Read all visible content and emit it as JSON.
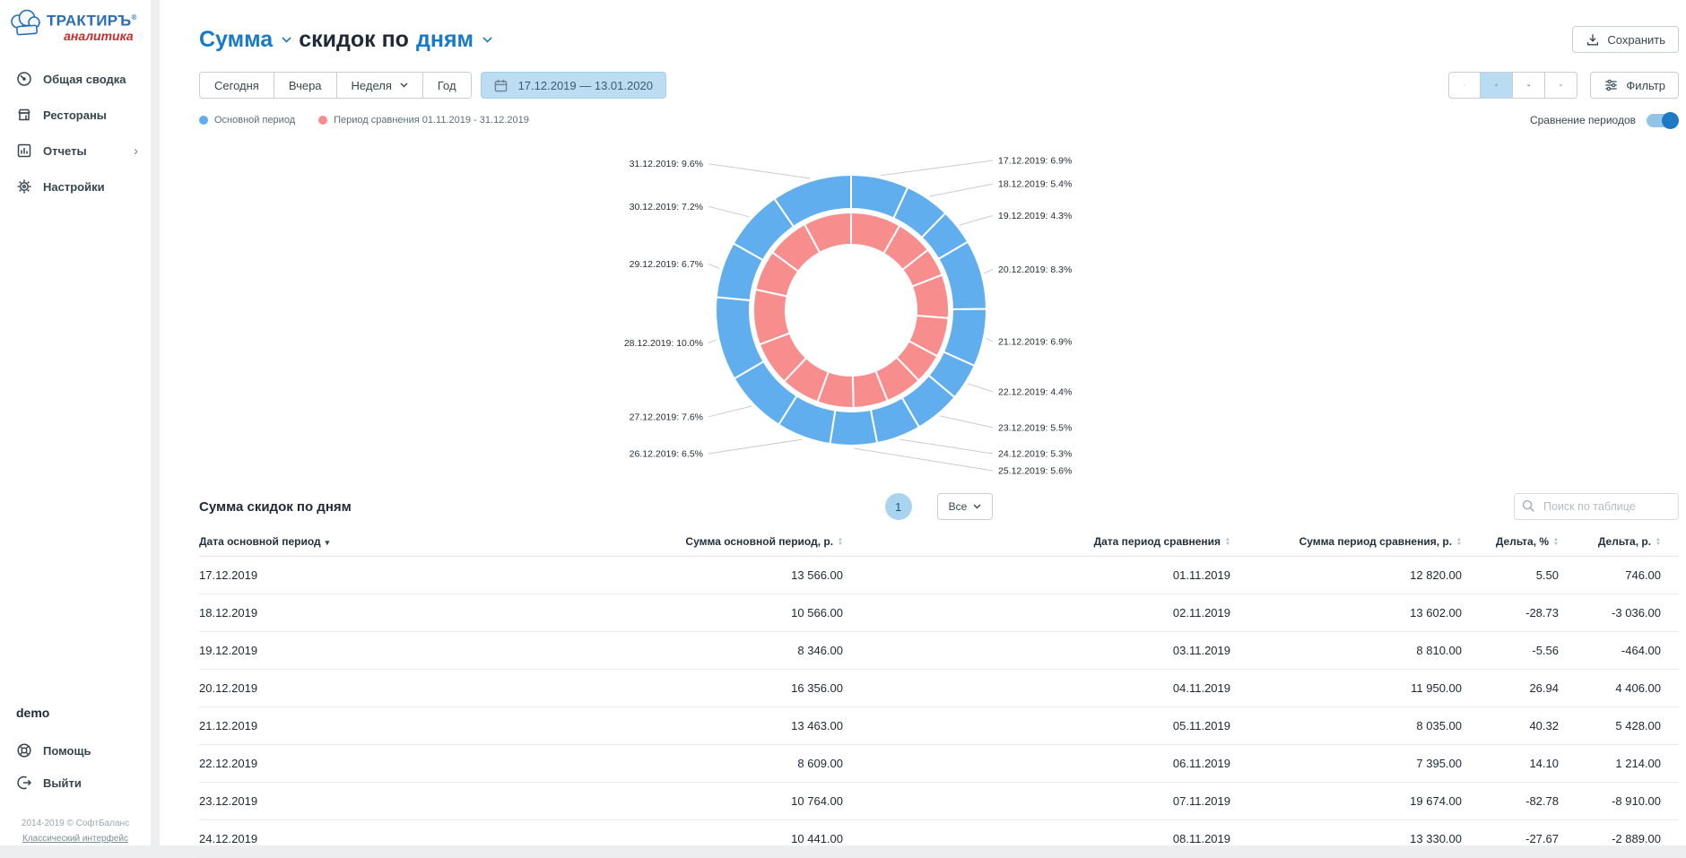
{
  "brand": {
    "name": "ТРАКТИРЪ",
    "reg": "®",
    "sub": "аналитика"
  },
  "sidebar": {
    "items": [
      {
        "label": "Общая сводка",
        "icon": "gauge-icon"
      },
      {
        "label": "Рестораны",
        "icon": "restaurant-icon"
      },
      {
        "label": "Отчеты",
        "icon": "reports-icon",
        "chevron": true
      },
      {
        "label": "Настройки",
        "icon": "gear-icon"
      }
    ],
    "user": "demo",
    "help_label": "Помощь",
    "logout_label": "Выйти",
    "copyright": "2014-2019 © СофтБаланс",
    "footer_link": "Классический интерфейс"
  },
  "header": {
    "title_parts": {
      "metric": "Сумма",
      "middle": "скидок по",
      "grouping": "дням"
    },
    "save_label": "Сохранить"
  },
  "controls": {
    "range_buttons": [
      "Сегодня",
      "Вчера",
      "Неделя",
      "Год"
    ],
    "date_range": "17.12.2019 — 13.01.2020",
    "chart_types": [
      "line",
      "pie",
      "area",
      "bar"
    ],
    "active_chart_type": "pie",
    "filter_label": "Фильтр"
  },
  "legend": {
    "items": [
      {
        "label": "Основной период",
        "color": "#61aeef"
      },
      {
        "label": "Период сравнения 01.11.2019 - 31.12.2019",
        "color": "#f78d8d"
      }
    ],
    "compare_label": "Сравнение периодов",
    "compare_on": true
  },
  "colors": {
    "accent": "#1779c8",
    "primary_series": "#61aeef",
    "comparison_series": "#f78d8d",
    "leader_line": "#c8ccd0",
    "selected_bg": "#b9dcf3"
  },
  "chart_data": {
    "type": "pie",
    "subtype": "double-donut",
    "direction": "clockwise-from-top",
    "outer_series": {
      "name": "Основной период",
      "color": "#61aeef",
      "labels": [
        "17.12.2019",
        "18.12.2019",
        "19.12.2019",
        "20.12.2019",
        "21.12.2019",
        "22.12.2019",
        "23.12.2019",
        "24.12.2019",
        "25.12.2019",
        "26.12.2019",
        "27.12.2019",
        "28.12.2019",
        "29.12.2019",
        "30.12.2019",
        "31.12.2019"
      ],
      "percent": [
        6.9,
        5.4,
        4.3,
        8.3,
        6.9,
        4.4,
        5.5,
        5.3,
        5.6,
        6.5,
        7.6,
        10.0,
        6.7,
        7.2,
        9.6
      ]
    },
    "inner_series": {
      "name": "Период сравнения",
      "color": "#f78d8d",
      "percent_estimated": [
        8.3,
        6.1,
        4.7,
        7.2,
        6.5,
        5.0,
        6.1,
        5.7,
        6.0,
        6.4,
        7.3,
        9.1,
        6.7,
        7.0,
        7.9
      ]
    }
  },
  "table": {
    "title": "Сумма скидок по дням",
    "page": "1",
    "page_size_label": "Все",
    "search_placeholder": "Поиск по таблице",
    "columns": [
      {
        "label": "Дата основной период",
        "sort": "active",
        "align": "left"
      },
      {
        "label": "Сумма основной период, р.",
        "sort": "both",
        "align": "right"
      },
      {
        "label": "Дата период сравнения",
        "sort": "both",
        "align": "right"
      },
      {
        "label": "Сумма период сравнения, р.",
        "sort": "both",
        "align": "right"
      },
      {
        "label": "Дельта, %",
        "sort": "both",
        "align": "right"
      },
      {
        "label": "Дельта, р.",
        "sort": "both",
        "align": "right"
      }
    ],
    "rows": [
      [
        "17.12.2019",
        "13 566.00",
        "01.11.2019",
        "12 820.00",
        "5.50",
        "746.00"
      ],
      [
        "18.12.2019",
        "10 566.00",
        "02.11.2019",
        "13 602.00",
        "-28.73",
        "-3 036.00"
      ],
      [
        "19.12.2019",
        "8 346.00",
        "03.11.2019",
        "8 810.00",
        "-5.56",
        "-464.00"
      ],
      [
        "20.12.2019",
        "16 356.00",
        "04.11.2019",
        "11 950.00",
        "26.94",
        "4 406.00"
      ],
      [
        "21.12.2019",
        "13 463.00",
        "05.11.2019",
        "8 035.00",
        "40.32",
        "5 428.00"
      ],
      [
        "22.12.2019",
        "8 609.00",
        "06.11.2019",
        "7 395.00",
        "14.10",
        "1 214.00"
      ],
      [
        "23.12.2019",
        "10 764.00",
        "07.11.2019",
        "19 674.00",
        "-82.78",
        "-8 910.00"
      ],
      [
        "24.12.2019",
        "10 441.00",
        "08.11.2019",
        "13 330.00",
        "-27.67",
        "-2 889.00"
      ]
    ]
  }
}
